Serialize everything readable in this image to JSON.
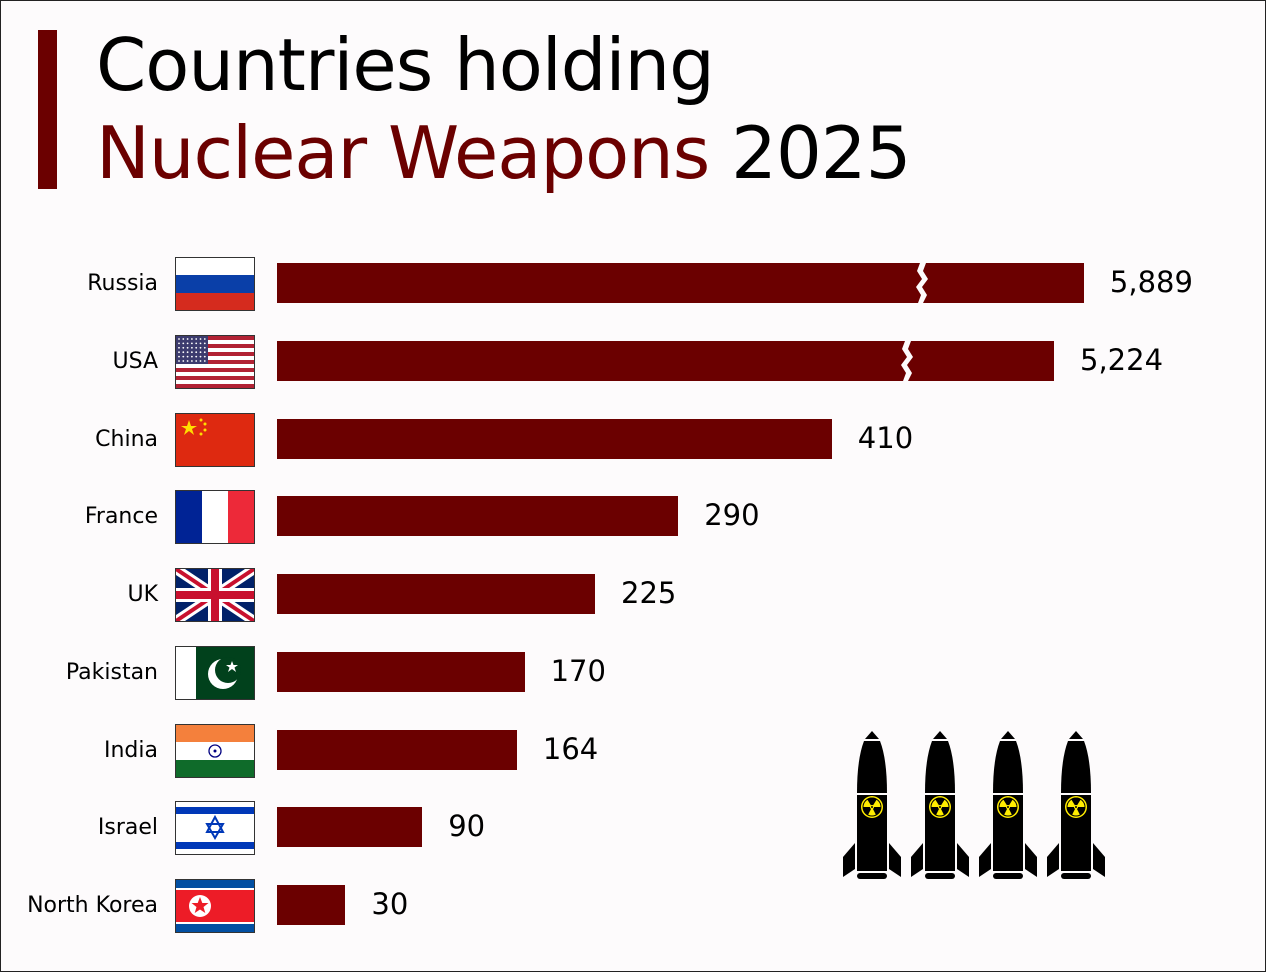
{
  "chart_data": {
    "type": "bar",
    "orientation": "horizontal",
    "title_line1": "Countries holding",
    "title_line2_red": "Nuclear Weapons",
    "title_line2_black": "2025",
    "axis_break": true,
    "categories": [
      "Russia",
      "USA",
      "China",
      "France",
      "UK",
      "Pakistan",
      "India",
      "Israel",
      "North Korea"
    ],
    "values": [
      5889,
      5224,
      410,
      290,
      225,
      170,
      164,
      90,
      30
    ],
    "value_labels": [
      "5,889",
      "5,224",
      "410",
      "290",
      "225",
      "170",
      "164",
      "90",
      "30"
    ],
    "flags": [
      "russia",
      "usa",
      "china",
      "france",
      "uk",
      "pakistan",
      "india",
      "israel",
      "north-korea"
    ],
    "bar_color": "#6b0000"
  },
  "decor": {
    "missile_count": 4,
    "missile_icon": "nuclear-missile-icon",
    "radiation_color": "#ffec00"
  }
}
